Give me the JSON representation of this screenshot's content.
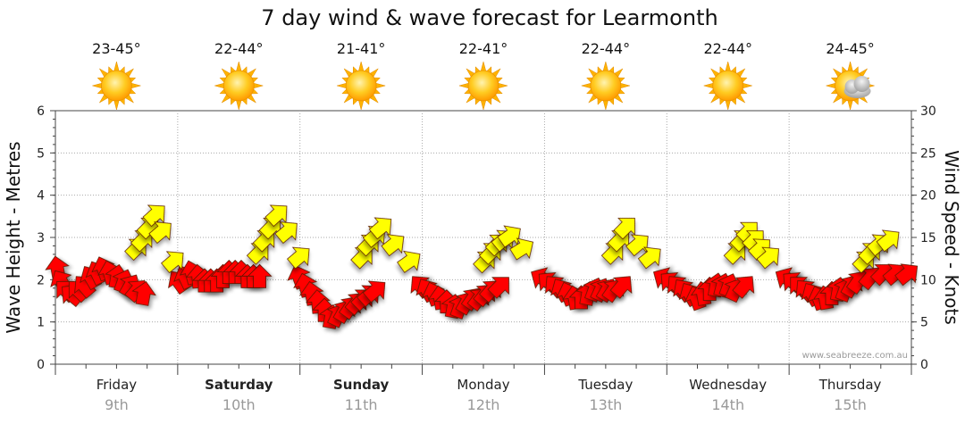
{
  "chart_data": {
    "type": "scatter",
    "title": "7 day wind & wave forecast for Learmonth",
    "ylabel_left": "Wave Height - Metres",
    "ylabel_right": "Wind Speed - Knots",
    "ylim_left": [
      0,
      6
    ],
    "ylim_right": [
      0,
      30
    ],
    "yticks_left": [
      "0",
      "1",
      "2",
      "3",
      "4",
      "5",
      "6"
    ],
    "yticks_right": [
      "0",
      "5",
      "10",
      "15",
      "20",
      "25",
      "30"
    ],
    "grid": true,
    "watermark": "www.seabreeze.com.au",
    "days": [
      {
        "day": "Friday",
        "date": "9th",
        "temp": "23-45°",
        "icon": "sun-icon",
        "bold": false
      },
      {
        "day": "Saturday",
        "date": "10th",
        "temp": "22-44°",
        "icon": "sun-icon",
        "bold": true
      },
      {
        "day": "Sunday",
        "date": "11th",
        "temp": "21-41°",
        "icon": "sun-icon",
        "bold": true
      },
      {
        "day": "Monday",
        "date": "12th",
        "temp": "22-41°",
        "icon": "sun-icon",
        "bold": false
      },
      {
        "day": "Tuesday",
        "date": "13th",
        "temp": "22-44°",
        "icon": "sun-icon",
        "bold": false
      },
      {
        "day": "Wednesday",
        "date": "14th",
        "temp": "22-44°",
        "icon": "sun-icon",
        "bold": false
      },
      {
        "day": "Thursday",
        "date": "15th",
        "temp": "24-45°",
        "icon": "sun-cloud-icon",
        "bold": false
      }
    ],
    "series": [
      {
        "color": "#ff0000",
        "points": [
          [
            0.02,
            2.2,
            -10
          ],
          [
            0.06,
            1.9,
            -30
          ],
          [
            0.1,
            1.7,
            -45
          ],
          [
            0.15,
            1.6,
            -50
          ],
          [
            0.2,
            1.7,
            -45
          ],
          [
            0.25,
            1.8,
            -40
          ],
          [
            0.3,
            2.0,
            -30
          ],
          [
            0.35,
            2.1,
            -25
          ],
          [
            0.4,
            2.2,
            -20
          ],
          [
            0.45,
            2.1,
            -15
          ],
          [
            0.5,
            2.0,
            10
          ],
          [
            0.55,
            1.9,
            20
          ],
          [
            0.6,
            1.8,
            30
          ],
          [
            0.65,
            1.7,
            40
          ],
          [
            0.72,
            1.6,
            10
          ],
          [
            1.02,
            1.9,
            -35
          ],
          [
            1.07,
            2.0,
            -25
          ],
          [
            1.12,
            2.1,
            -15
          ],
          [
            1.17,
            2.0,
            -5
          ],
          [
            1.22,
            1.9,
            0
          ],
          [
            1.27,
            1.9,
            0
          ],
          [
            1.32,
            1.9,
            0
          ],
          [
            1.37,
            2.0,
            0
          ],
          [
            1.42,
            2.1,
            0
          ],
          [
            1.47,
            2.1,
            0
          ],
          [
            1.52,
            2.1,
            0
          ],
          [
            1.57,
            2.0,
            0
          ],
          [
            1.62,
            2.0,
            0
          ],
          [
            1.67,
            2.0,
            0
          ],
          [
            2.0,
            2.0,
            -20
          ],
          [
            2.05,
            1.8,
            -15
          ],
          [
            2.1,
            1.6,
            -10
          ],
          [
            2.15,
            1.4,
            -5
          ],
          [
            2.2,
            1.2,
            0
          ],
          [
            2.25,
            1.05,
            10
          ],
          [
            2.3,
            1.1,
            25
          ],
          [
            2.35,
            1.2,
            30
          ],
          [
            2.4,
            1.3,
            35
          ],
          [
            2.45,
            1.4,
            40
          ],
          [
            2.5,
            1.5,
            45
          ],
          [
            2.55,
            1.6,
            48
          ],
          [
            2.6,
            1.7,
            50
          ],
          [
            3.0,
            1.8,
            -40
          ],
          [
            3.05,
            1.7,
            -30
          ],
          [
            3.1,
            1.6,
            -20
          ],
          [
            3.15,
            1.5,
            -10
          ],
          [
            3.2,
            1.4,
            0
          ],
          [
            3.25,
            1.3,
            10
          ],
          [
            3.3,
            1.3,
            20
          ],
          [
            3.35,
            1.4,
            30
          ],
          [
            3.4,
            1.5,
            35
          ],
          [
            3.45,
            1.5,
            38
          ],
          [
            3.5,
            1.6,
            40
          ],
          [
            3.55,
            1.7,
            42
          ],
          [
            3.62,
            1.8,
            45
          ],
          [
            4.0,
            2.0,
            -60
          ],
          [
            4.05,
            1.9,
            -50
          ],
          [
            4.1,
            1.8,
            -40
          ],
          [
            4.15,
            1.7,
            -30
          ],
          [
            4.2,
            1.6,
            -20
          ],
          [
            4.25,
            1.5,
            -10
          ],
          [
            4.3,
            1.5,
            0
          ],
          [
            4.35,
            1.6,
            10
          ],
          [
            4.4,
            1.7,
            20
          ],
          [
            4.45,
            1.7,
            25
          ],
          [
            4.5,
            1.7,
            30
          ],
          [
            4.55,
            1.7,
            35
          ],
          [
            4.62,
            1.8,
            40
          ],
          [
            5.0,
            2.0,
            -60
          ],
          [
            5.05,
            1.9,
            -50
          ],
          [
            5.1,
            1.8,
            -40
          ],
          [
            5.15,
            1.7,
            -35
          ],
          [
            5.2,
            1.6,
            -30
          ],
          [
            5.25,
            1.5,
            -20
          ],
          [
            5.3,
            1.6,
            -10
          ],
          [
            5.35,
            1.7,
            0
          ],
          [
            5.4,
            1.8,
            10
          ],
          [
            5.45,
            1.8,
            15
          ],
          [
            5.5,
            1.8,
            20
          ],
          [
            5.55,
            1.7,
            25
          ],
          [
            5.62,
            1.8,
            40
          ],
          [
            6.0,
            2.0,
            -60
          ],
          [
            6.05,
            1.9,
            -50
          ],
          [
            6.1,
            1.8,
            -45
          ],
          [
            6.15,
            1.7,
            -40
          ],
          [
            6.2,
            1.6,
            -30
          ],
          [
            6.25,
            1.5,
            -20
          ],
          [
            6.3,
            1.5,
            -10
          ],
          [
            6.35,
            1.6,
            0
          ],
          [
            6.4,
            1.7,
            10
          ],
          [
            6.45,
            1.7,
            20
          ],
          [
            6.5,
            1.8,
            30
          ],
          [
            6.55,
            1.9,
            35
          ],
          [
            6.65,
            2.0,
            40
          ],
          [
            6.75,
            2.1,
            45
          ],
          [
            6.85,
            2.1,
            50
          ],
          [
            6.95,
            2.1,
            52
          ]
        ]
      },
      {
        "color": "#ffff00",
        "points": [
          [
            0.65,
            13.5,
            45
          ],
          [
            0.7,
            14.5,
            45
          ],
          [
            0.75,
            16.0,
            45
          ],
          [
            0.8,
            17.5,
            48
          ],
          [
            0.85,
            15.5,
            50
          ],
          [
            0.95,
            12.0,
            50
          ],
          [
            1.65,
            13.0,
            45
          ],
          [
            1.7,
            14.5,
            45
          ],
          [
            1.75,
            16.0,
            45
          ],
          [
            1.8,
            17.5,
            48
          ],
          [
            1.88,
            15.5,
            50
          ],
          [
            1.98,
            12.5,
            50
          ],
          [
            2.5,
            12.5,
            45
          ],
          [
            2.55,
            14.0,
            45
          ],
          [
            2.6,
            15.0,
            50
          ],
          [
            2.65,
            16.0,
            50
          ],
          [
            2.75,
            14.0,
            52
          ],
          [
            2.88,
            12.0,
            55
          ],
          [
            3.5,
            12.0,
            45
          ],
          [
            3.55,
            13.0,
            45
          ],
          [
            3.6,
            14.0,
            45
          ],
          [
            3.65,
            14.5,
            50
          ],
          [
            3.7,
            15.0,
            55
          ],
          [
            3.8,
            13.5,
            58
          ],
          [
            4.55,
            13.0,
            45
          ],
          [
            4.6,
            14.5,
            45
          ],
          [
            4.65,
            16.0,
            45
          ],
          [
            4.75,
            14.0,
            50
          ],
          [
            4.85,
            12.5,
            52
          ],
          [
            5.55,
            13.0,
            45
          ],
          [
            5.6,
            14.5,
            45
          ],
          [
            5.65,
            15.5,
            45
          ],
          [
            5.7,
            14.5,
            45
          ],
          [
            5.75,
            13.5,
            48
          ],
          [
            5.82,
            12.5,
            50
          ],
          [
            6.6,
            12.0,
            45
          ],
          [
            6.65,
            13.0,
            45
          ],
          [
            6.72,
            14.0,
            50
          ],
          [
            6.8,
            14.5,
            52
          ]
        ]
      }
    ]
  }
}
